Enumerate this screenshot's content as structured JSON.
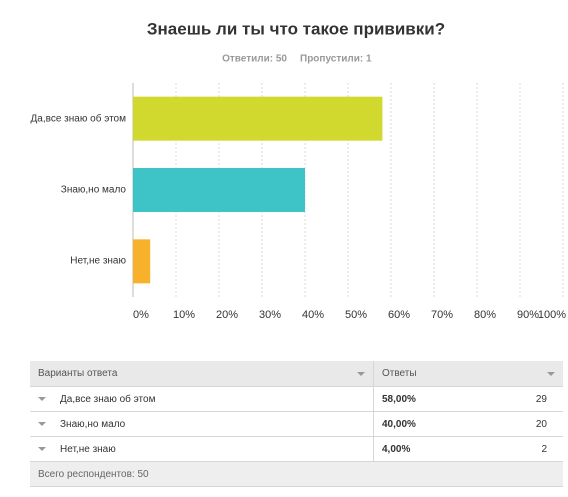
{
  "chart_data": {
    "type": "bar",
    "orientation": "horizontal",
    "title": "Знаешь ли ты что такое прививки?",
    "answered": "Ответили: 50",
    "skipped": "Пропустили: 1",
    "categories": [
      "Да,все знаю об этом",
      "Знаю,но мало",
      "Нет,не знаю"
    ],
    "values": [
      58,
      40,
      4
    ],
    "colors": [
      "#d1d92e",
      "#3ec3c6",
      "#f8b12b"
    ],
    "xlim": [
      0,
      100
    ],
    "xticks": [
      {
        "value": 0,
        "label": "0%"
      },
      {
        "value": 10,
        "label": "10%"
      },
      {
        "value": 20,
        "label": "20%"
      },
      {
        "value": 30,
        "label": "30%"
      },
      {
        "value": 40,
        "label": "40%"
      },
      {
        "value": 50,
        "label": "50%"
      },
      {
        "value": 60,
        "label": "60%"
      },
      {
        "value": 70,
        "label": "70%"
      },
      {
        "value": 80,
        "label": "80%"
      },
      {
        "value": 90,
        "label": "90%"
      },
      {
        "value": 100,
        "label": "100%"
      }
    ],
    "grid": true
  },
  "table": {
    "columns": [
      "Варианты ответа",
      "Ответы"
    ],
    "rows": [
      [
        "Да,все знаю об этом",
        "58,00%",
        29
      ],
      [
        "Знаю,но мало",
        "40,00%",
        20
      ],
      [
        "Нет,не знаю",
        "4,00%",
        2
      ]
    ],
    "footer": "Всего респондентов: 50"
  }
}
